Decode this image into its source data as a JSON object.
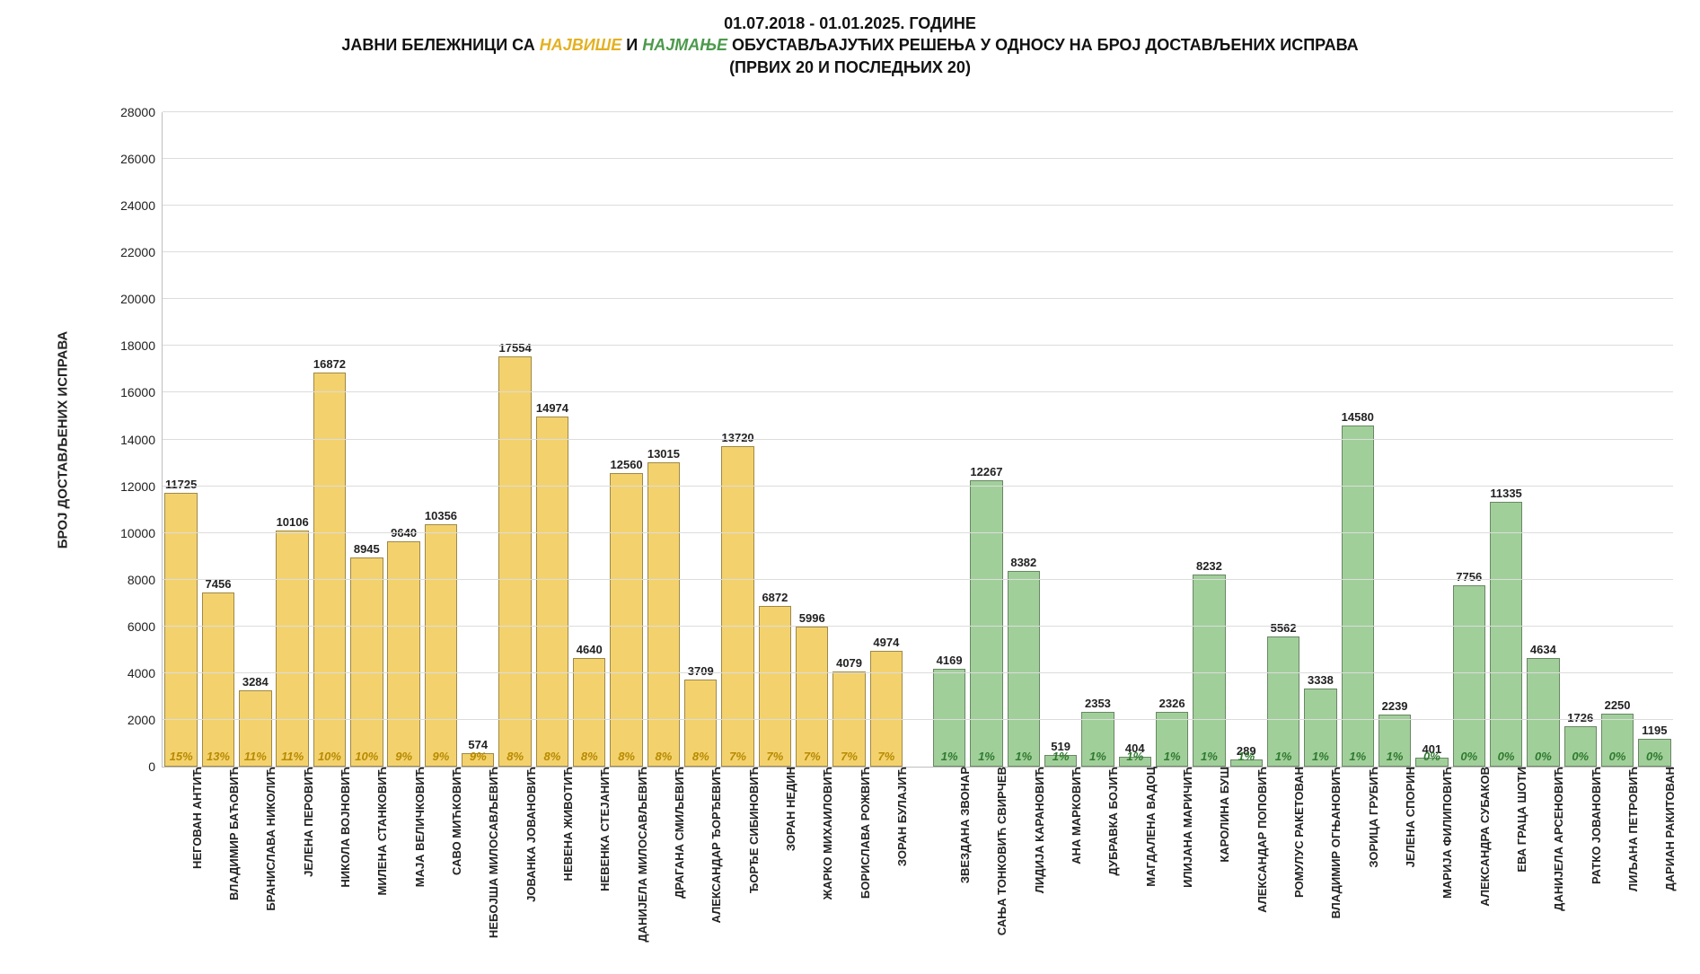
{
  "title": {
    "line1": "01.07.2018 - 01.01.2025. ГОДИНЕ",
    "line2_pre": "ЈАВНИ БЕЛЕЖНИЦИ СА ",
    "line2_top": "НАЈВИШЕ",
    "line2_mid": " И ",
    "line2_bot": "НАЈМАЊЕ",
    "line2_post": " ОБУСТАВЉАЈУЋИХ РЕШЕЊА У ОДНОСУ НА БРОЈ ДОСТАВЉЕНИХ ИСПРАВА",
    "line3": "(ПРВИХ 20 И ПОСЛЕДЊИХ 20)"
  },
  "chart": {
    "type": "bar",
    "yaxis_title": "БРОЈ ДОСТАВЉЕНИХ ИСПРАВА",
    "ymin": 0,
    "ymax": 28000,
    "ytick_step": 2000,
    "background_color": "#ffffff",
    "grid_color": "#dcdcdc",
    "axis_color": "#bfbfbf",
    "bar_border_color": "rgba(0,0,0,0.35)",
    "group_top": {
      "bar_color": "#f3d26e",
      "pct_color": "#b88a00",
      "items": [
        {
          "name": "НЕГОВАН АНТИЋ",
          "value": 11725,
          "pct": "15%"
        },
        {
          "name": "ВЛАДИМИР БАЋОВИЋ",
          "value": 7456,
          "pct": "13%"
        },
        {
          "name": "БРАНИСЛАВА НИКОЛИЋ",
          "value": 3284,
          "pct": "11%"
        },
        {
          "name": "ЈЕЛЕНА ПЕРОВИЋ",
          "value": 10106,
          "pct": "11%"
        },
        {
          "name": "НИКОЛА ВОЈНОВИЋ",
          "value": 16872,
          "pct": "10%"
        },
        {
          "name": "МИЛЕНА СТАНКОВИЋ",
          "value": 8945,
          "pct": "10%"
        },
        {
          "name": "МАЈА ВЕЛИЧКОВИЋ",
          "value": 9640,
          "pct": "9%"
        },
        {
          "name": "САВО МИЋКОВИЋ",
          "value": 10356,
          "pct": "9%"
        },
        {
          "name": "НЕБОЈША МИЛОСАВЉЕВИЋ",
          "value": 574,
          "pct": "9%"
        },
        {
          "name": "ЈОВАНКА ЈОВАНОВИЋ",
          "value": 17554,
          "pct": "8%"
        },
        {
          "name": "НЕВЕНА ЖИВОТИЋ",
          "value": 14974,
          "pct": "8%"
        },
        {
          "name": "НЕВЕНКА СТЕЈАНИЋ",
          "value": 4640,
          "pct": "8%"
        },
        {
          "name": "ДАНИЈЕЛА МИЛОСАВЉЕВИЋ",
          "value": 12560,
          "pct": "8%"
        },
        {
          "name": "ДРАГАНА СМИЉЕВИЋ",
          "value": 13015,
          "pct": "8%"
        },
        {
          "name": "АЛЕКСАНДАР ЂОРЂЕВИЋ",
          "value": 3709,
          "pct": "8%"
        },
        {
          "name": "ЂОРЂЕ СИБИНОВИЋ",
          "value": 13720,
          "pct": "7%"
        },
        {
          "name": "ЗОРАН НЕДИН",
          "value": 6872,
          "pct": "7%"
        },
        {
          "name": "ЖАРКО МИХАИЛОВИЋ",
          "value": 5996,
          "pct": "7%"
        },
        {
          "name": "БОРИСЛАВА РОЖВИЋ",
          "value": 4079,
          "pct": "7%"
        },
        {
          "name": "ЗОРАН БУЛАЈИЋ",
          "value": 4974,
          "pct": "7%"
        }
      ]
    },
    "group_bot": {
      "bar_color": "#a1cf9a",
      "pct_color": "#2f7a2f",
      "items": [
        {
          "name": "ЗВЕЗДАНА ЗВОНАР",
          "value": 4169,
          "pct": "1%"
        },
        {
          "name": "САЊА ТОНКОВИЋ СВИРЧЕВ",
          "value": 12267,
          "pct": "1%"
        },
        {
          "name": "ЛИДИЈА КАРАНОВИЋ",
          "value": 8382,
          "pct": "1%"
        },
        {
          "name": "АНА МАРКОВИЋ",
          "value": 519,
          "pct": "1%"
        },
        {
          "name": "ДУБРАВКА БОЈИЋ",
          "value": 2353,
          "pct": "1%"
        },
        {
          "name": "МАГДАЛЕНА ВАДОЦ",
          "value": 404,
          "pct": "1%"
        },
        {
          "name": "ИЛИЈАНА МАРИЧИЋ",
          "value": 2326,
          "pct": "1%"
        },
        {
          "name": "КАРОЛИНА БУШ",
          "value": 8232,
          "pct": "1%"
        },
        {
          "name": "АЛЕКСАНДАР ПОПОВИЋ",
          "value": 289,
          "pct": "1%"
        },
        {
          "name": "РОМУЛУС РАКЕТОВАН",
          "value": 5562,
          "pct": "1%"
        },
        {
          "name": "ВЛАДИМИР ОГЊАНОВИЋ",
          "value": 3338,
          "pct": "1%"
        },
        {
          "name": "ЗОРИЦА ГРУБИЋ",
          "value": 14580,
          "pct": "1%"
        },
        {
          "name": "ЈЕЛЕНА СПОРИН",
          "value": 2239,
          "pct": "1%"
        },
        {
          "name": "МАРИЈА ФИЛИПОВИЋ",
          "value": 401,
          "pct": "0%"
        },
        {
          "name": "АЛЕКСАНДРА СУБАКОВ",
          "value": 7756,
          "pct": "0%"
        },
        {
          "name": "ЕВА ГРАЦА ШОТИ",
          "value": 11335,
          "pct": "0%"
        },
        {
          "name": "ДАНИЈЕЛА АРСЕНОВИЋ",
          "value": 4634,
          "pct": "0%"
        },
        {
          "name": "РАТКО ЈОВАНОВИЋ",
          "value": 1726,
          "pct": "0%"
        },
        {
          "name": "ЛИЉАНА ПЕТРОВИЋ",
          "value": 2250,
          "pct": "0%"
        },
        {
          "name": "ДАРИАН РАКИТОВАН",
          "value": 1195,
          "pct": "0%"
        }
      ]
    },
    "value_label_fontsize": 13,
    "pct_label_fontsize": 13,
    "xlabel_fontsize": 13
  }
}
